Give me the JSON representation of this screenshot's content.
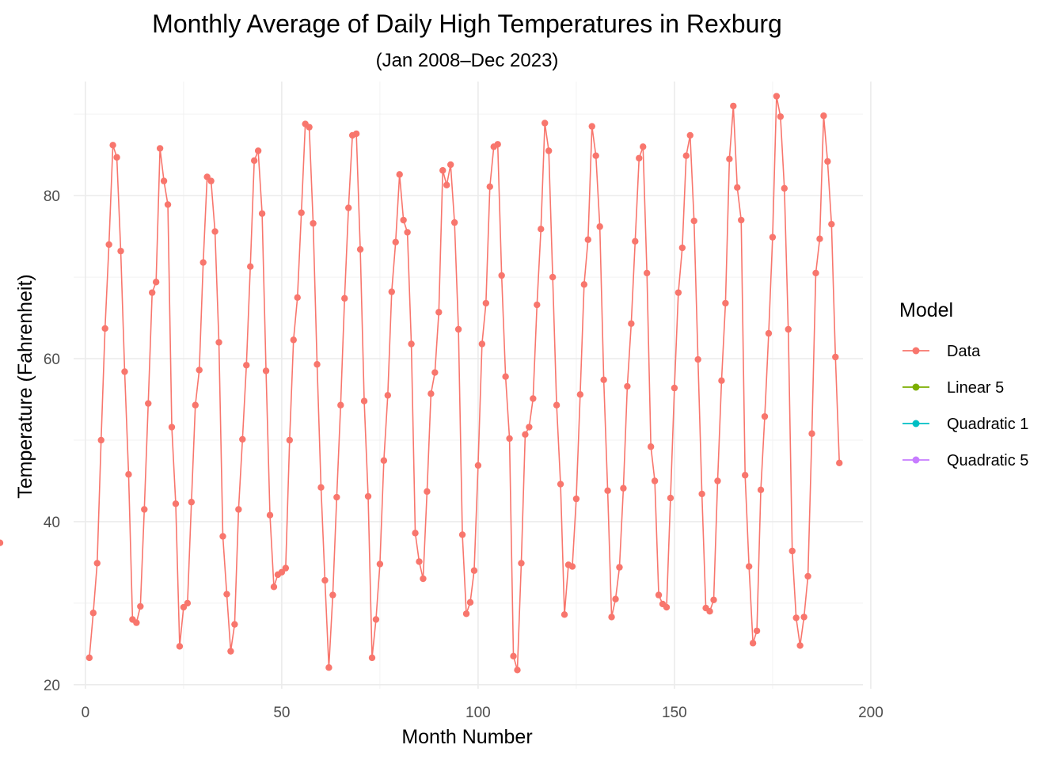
{
  "chart_data": {
    "type": "line",
    "title": "Monthly Average of Daily High Temperatures in Rexburg",
    "subtitle": "(Jan 2008–Dec 2023)",
    "xlabel": "Month Number",
    "ylabel": "Temperature (Fahrenheit)",
    "xlim": [
      -3,
      198
    ],
    "ylim": [
      19.5,
      94
    ],
    "x_ticks": [
      0,
      50,
      100,
      150,
      200
    ],
    "y_ticks": [
      20,
      40,
      60,
      80
    ],
    "x_tick_labels": [
      "0",
      "50",
      "100",
      "150",
      "200"
    ],
    "y_tick_labels": [
      "20",
      "40",
      "60",
      "80"
    ],
    "grid": true,
    "legend": {
      "title": "Model",
      "position": "right",
      "entries": [
        "Data",
        "Linear 5",
        "Quadratic 1",
        "Quadratic 5"
      ]
    },
    "x": {
      "start": 1,
      "end": 192,
      "step": 1
    },
    "series": [
      {
        "name": "Data",
        "color": "#F8766D",
        "values": [
          23.3,
          28.8,
          34.9,
          50.0,
          63.7,
          74.0,
          86.2,
          84.7,
          73.2,
          58.4,
          45.8,
          28.0,
          27.6,
          29.6,
          41.5,
          54.5,
          68.1,
          69.4,
          85.8,
          81.8,
          78.9,
          51.6,
          42.2,
          24.7,
          29.5,
          30.0,
          42.4,
          54.3,
          58.6,
          71.8,
          82.3,
          81.8,
          75.6,
          62.0,
          38.2,
          31.1,
          24.1,
          27.4,
          41.5,
          50.1,
          59.2,
          71.3,
          84.3,
          85.5,
          77.8,
          58.5,
          40.8,
          32.0,
          33.5,
          33.8,
          34.3,
          50.0,
          62.3,
          67.5,
          77.9,
          88.8,
          88.4,
          76.6,
          59.3,
          44.2,
          32.8,
          22.1,
          31.0,
          43.0,
          54.3,
          67.4,
          78.5,
          87.4,
          87.6,
          73.4,
          54.8,
          43.1,
          23.3,
          28.0,
          34.8,
          47.5,
          55.5,
          68.2,
          74.3,
          82.6,
          77.0,
          75.5,
          61.8,
          38.6,
          35.1,
          33.0,
          43.7,
          55.7,
          58.3,
          65.7,
          83.1,
          81.3,
          83.8,
          76.7,
          63.6,
          38.4,
          28.7,
          30.1,
          34.0,
          46.9,
          61.8,
          66.8,
          81.1,
          86.0,
          86.3,
          70.2,
          57.8,
          50.2,
          23.5,
          21.8,
          34.9,
          50.7,
          51.6,
          55.1,
          66.6,
          75.9,
          88.9,
          85.5,
          70.0,
          54.3,
          44.6,
          28.6,
          34.7,
          34.5,
          42.8,
          55.6,
          69.1,
          74.6,
          88.5,
          84.9,
          76.2,
          57.4,
          43.8,
          28.3,
          30.5,
          34.4,
          44.1,
          56.6,
          64.3,
          74.4,
          84.6,
          86.0,
          70.5,
          49.2,
          45.0,
          31.0,
          29.9,
          29.5,
          42.9,
          56.4,
          68.1,
          73.6,
          84.9,
          87.4,
          76.9,
          59.9,
          43.4,
          29.4,
          29.0,
          30.4,
          45.0,
          57.3,
          66.8,
          84.5,
          91.0,
          81.0,
          77.0,
          45.7,
          34.5,
          25.1,
          26.6,
          43.9,
          52.9,
          63.1,
          74.9,
          92.2,
          89.7,
          80.9,
          63.6,
          36.4,
          28.2,
          24.8,
          28.3,
          33.3,
          50.8,
          70.5,
          74.7,
          89.8,
          84.2,
          76.5,
          60.2,
          47.2,
          37.4
        ]
      },
      {
        "name": "Linear 5",
        "color": "#7CAE00"
      },
      {
        "name": "Quadratic 1",
        "color": "#00BFC4"
      },
      {
        "name": "Quadratic 5",
        "color": "#C77CFF"
      }
    ]
  }
}
